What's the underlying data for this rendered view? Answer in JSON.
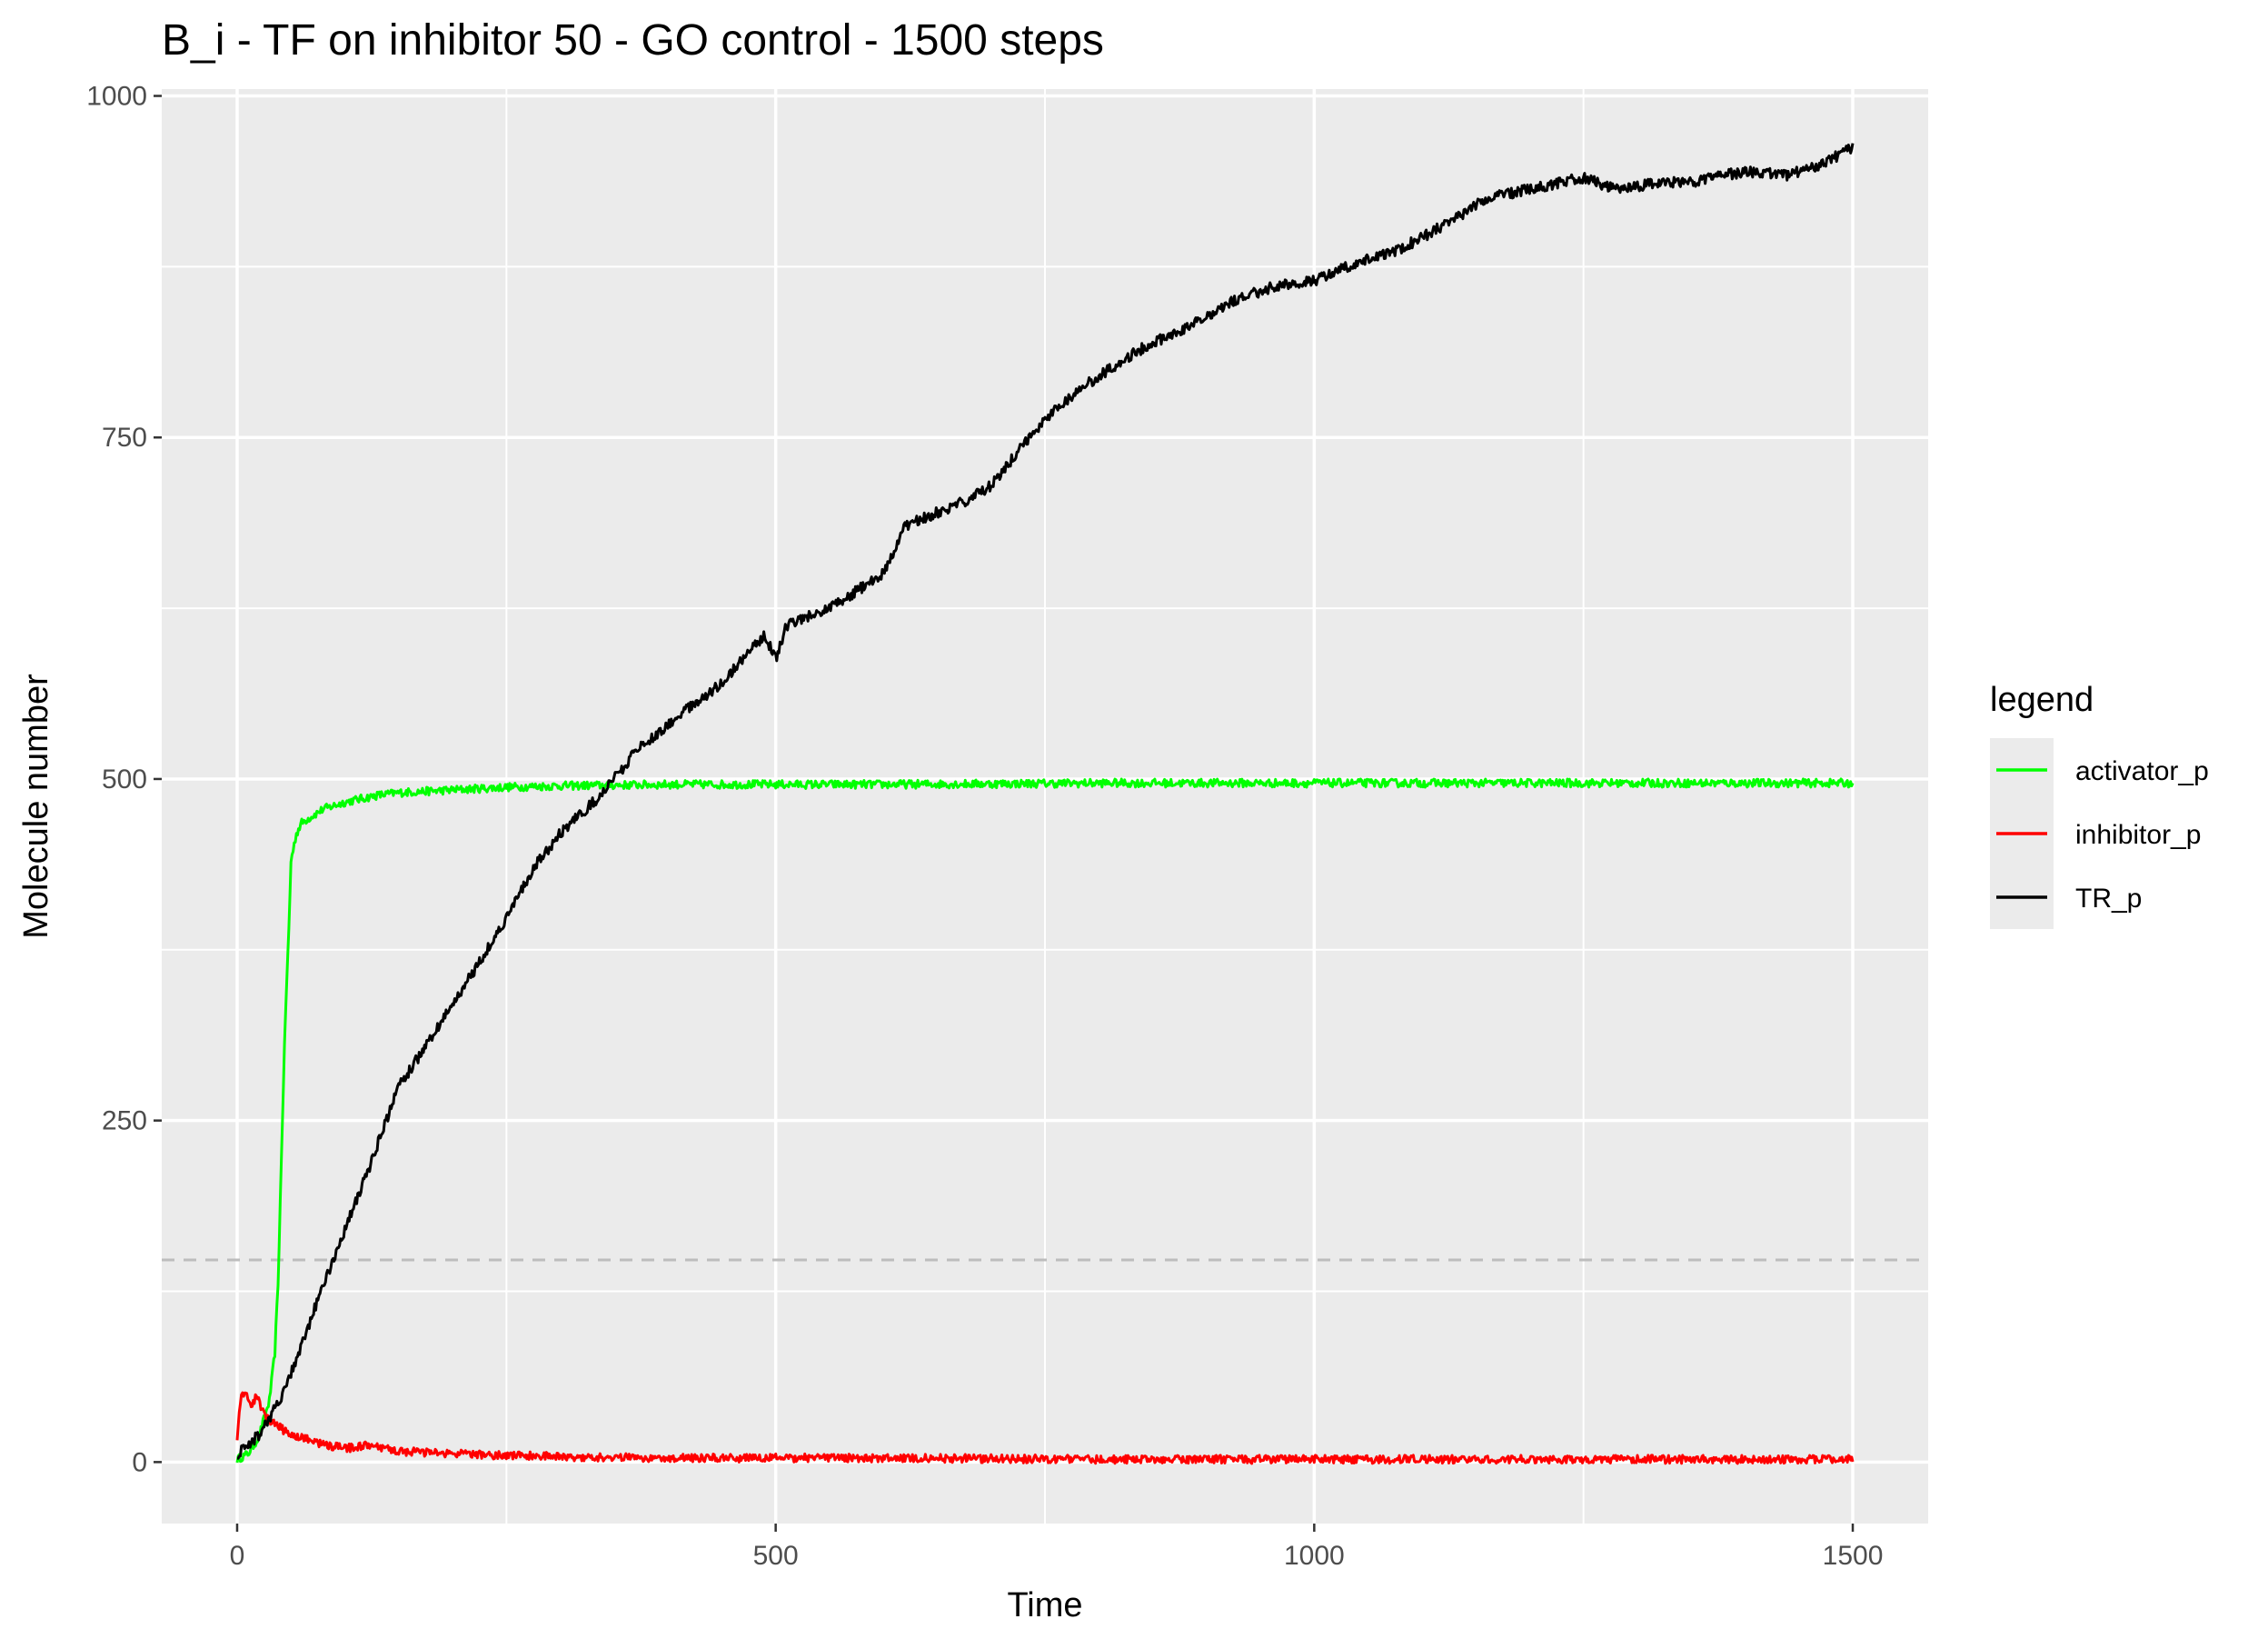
{
  "chart_data": {
    "type": "line",
    "title": "B_i - TF on inhibitor 50 - GO control - 1500 steps",
    "xlabel": "Time",
    "ylabel": "Molecule number",
    "xlim": [
      -70,
      1570
    ],
    "ylim": [
      -45,
      1005
    ],
    "x_ticks": [
      0,
      500,
      1000,
      1500
    ],
    "y_ticks": [
      0,
      250,
      500,
      750,
      1000
    ],
    "x_tick_labels": [
      "0",
      "500",
      "1000",
      "1500"
    ],
    "y_tick_labels": [
      "0",
      "250",
      "500",
      "750",
      "1000"
    ],
    "grid": true,
    "reference_line": {
      "y": 148,
      "style": "dashed",
      "color": "#bdbdbd"
    },
    "legend": {
      "title": "legend",
      "position": "right"
    },
    "series": [
      {
        "name": "activator_p",
        "color": "#00ff00",
        "noise": 3,
        "points": [
          [
            0,
            2
          ],
          [
            10,
            6
          ],
          [
            20,
            18
          ],
          [
            30,
            45
          ],
          [
            35,
            80
          ],
          [
            38,
            130
          ],
          [
            42,
            250
          ],
          [
            45,
            330
          ],
          [
            48,
            390
          ],
          [
            50,
            440
          ],
          [
            55,
            460
          ],
          [
            60,
            468
          ],
          [
            70,
            473
          ],
          [
            80,
            478
          ],
          [
            100,
            483
          ],
          [
            130,
            488
          ],
          [
            150,
            490
          ],
          [
            200,
            492
          ],
          [
            250,
            494
          ],
          [
            300,
            495
          ],
          [
            400,
            496
          ],
          [
            600,
            496
          ],
          [
            800,
            497
          ],
          [
            1000,
            497
          ],
          [
            1200,
            497
          ],
          [
            1500,
            497
          ]
        ]
      },
      {
        "name": "inhibitor_p",
        "color": "#ff0000",
        "noise": 3,
        "points": [
          [
            0,
            18
          ],
          [
            3,
            45
          ],
          [
            8,
            52
          ],
          [
            13,
            40
          ],
          [
            18,
            48
          ],
          [
            25,
            36
          ],
          [
            30,
            30
          ],
          [
            40,
            25
          ],
          [
            50,
            20
          ],
          [
            60,
            18
          ],
          [
            80,
            13
          ],
          [
            100,
            10
          ],
          [
            120,
            12
          ],
          [
            150,
            8
          ],
          [
            200,
            6
          ],
          [
            300,
            4
          ],
          [
            400,
            3
          ],
          [
            600,
            3
          ],
          [
            800,
            2
          ],
          [
            1000,
            2
          ],
          [
            1200,
            2
          ],
          [
            1500,
            2
          ]
        ]
      },
      {
        "name": "TR_p",
        "color": "#000000",
        "noise": 4,
        "points": [
          [
            0,
            5
          ],
          [
            20,
            20
          ],
          [
            40,
            45
          ],
          [
            60,
            85
          ],
          [
            80,
            130
          ],
          [
            100,
            170
          ],
          [
            120,
            210
          ],
          [
            150,
            275
          ],
          [
            180,
            310
          ],
          [
            200,
            335
          ],
          [
            240,
            385
          ],
          [
            280,
            440
          ],
          [
            300,
            460
          ],
          [
            340,
            490
          ],
          [
            370,
            520
          ],
          [
            400,
            540
          ],
          [
            450,
            570
          ],
          [
            480,
            598
          ],
          [
            490,
            605
          ],
          [
            500,
            588
          ],
          [
            510,
            612
          ],
          [
            550,
            625
          ],
          [
            600,
            650
          ],
          [
            620,
            685
          ],
          [
            680,
            705
          ],
          [
            700,
            715
          ],
          [
            730,
            745
          ],
          [
            760,
            772
          ],
          [
            800,
            795
          ],
          [
            840,
            815
          ],
          [
            880,
            830
          ],
          [
            920,
            848
          ],
          [
            960,
            860
          ],
          [
            1000,
            865
          ],
          [
            1040,
            878
          ],
          [
            1080,
            888
          ],
          [
            1120,
            905
          ],
          [
            1160,
            925
          ],
          [
            1200,
            932
          ],
          [
            1250,
            940
          ],
          [
            1280,
            932
          ],
          [
            1320,
            936
          ],
          [
            1360,
            938
          ],
          [
            1400,
            945
          ],
          [
            1440,
            942
          ],
          [
            1470,
            950
          ],
          [
            1500,
            962
          ]
        ]
      }
    ]
  }
}
